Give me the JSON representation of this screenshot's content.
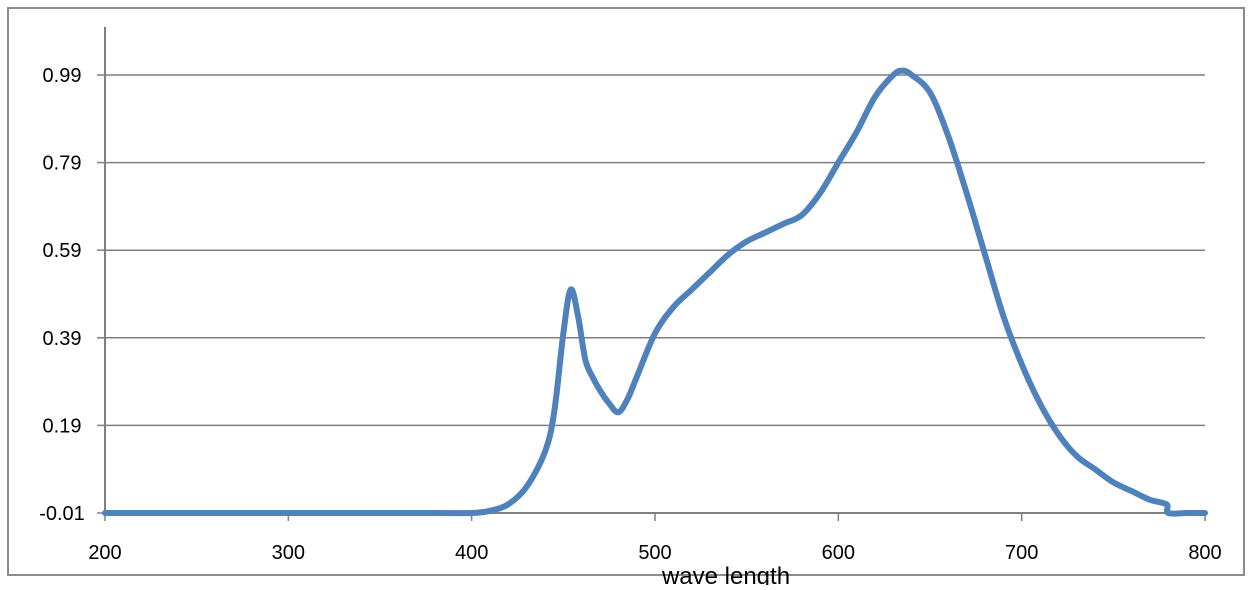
{
  "chart_data": {
    "type": "line",
    "title": "",
    "xlabel": "wave length",
    "ylabel": "",
    "xlim": [
      200,
      800
    ],
    "ylim": [
      -0.01,
      0.99
    ],
    "x_ticks": [
      "200",
      "300",
      "400",
      "500",
      "600",
      "700",
      "800"
    ],
    "y_ticks": [
      "-0.01",
      "0.19",
      "0.39",
      "0.59",
      "0.79",
      "0.99"
    ],
    "grid": "horizontal",
    "legend": "none",
    "line_color": "#4F81BD",
    "series": [
      {
        "x": [
          200,
          300,
          380,
          400,
          410,
          420,
          430,
          440,
          445,
          450,
          454,
          458,
          462,
          466,
          470,
          475,
          480,
          485,
          490,
          500,
          510,
          520,
          530,
          540,
          550,
          560,
          570,
          580,
          590,
          600,
          610,
          620,
          630,
          635,
          640,
          650,
          660,
          670,
          680,
          690,
          700,
          710,
          720,
          730,
          740,
          750,
          760,
          770,
          779,
          780,
          790,
          800
        ],
        "y": [
          -0.01,
          -0.01,
          -0.01,
          -0.01,
          -0.005,
          0.01,
          0.05,
          0.13,
          0.22,
          0.4,
          0.5,
          0.44,
          0.34,
          0.3,
          0.27,
          0.24,
          0.22,
          0.25,
          0.3,
          0.4,
          0.46,
          0.5,
          0.54,
          0.58,
          0.61,
          0.63,
          0.65,
          0.67,
          0.72,
          0.79,
          0.86,
          0.94,
          0.99,
          1.0,
          0.99,
          0.95,
          0.85,
          0.72,
          0.58,
          0.44,
          0.33,
          0.24,
          0.17,
          0.12,
          0.09,
          0.06,
          0.04,
          0.02,
          0.01,
          -0.01,
          -0.01,
          -0.01
        ]
      }
    ]
  }
}
